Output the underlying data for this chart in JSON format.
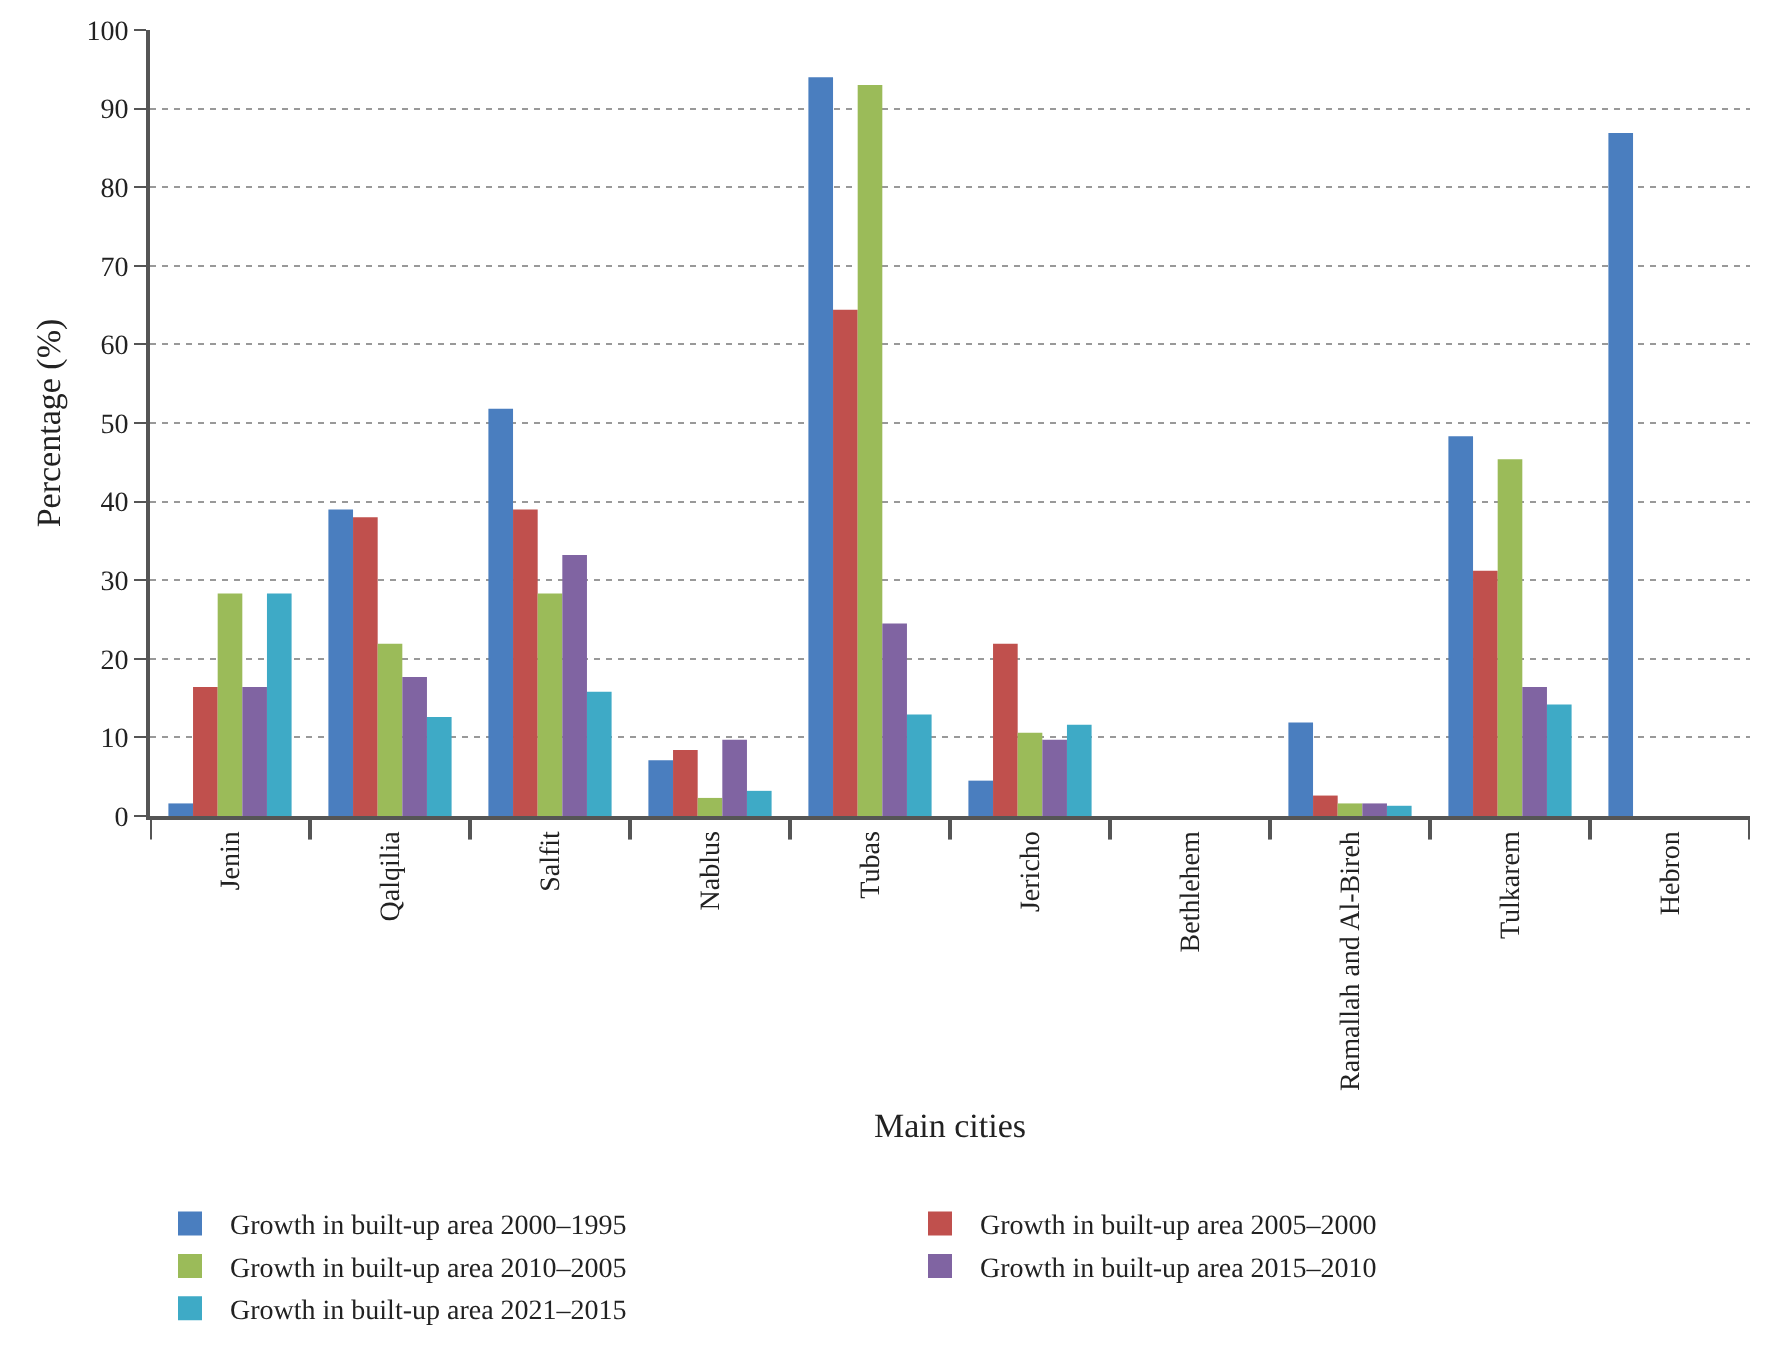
{
  "chart_data": {
    "type": "bar",
    "xlabel": "Main cities",
    "ylabel": "Percentage (%)",
    "categories": [
      "Jenin",
      "Qalqilia",
      "Salfit",
      "Nablus",
      "Tubas",
      "Jericho",
      "Bethlehem",
      "Ramallah and Al-Bireh",
      "Tulkarem",
      "Hebron"
    ],
    "series": [
      {
        "name": "Growth in built-up area 2000–1995",
        "color": "#4a7ebf",
        "values": [
          1.6,
          39.0,
          51.8,
          7.1,
          94.0,
          4.5,
          null,
          11.9,
          48.3,
          86.9
        ]
      },
      {
        "name": "Growth in built-up area 2005–2000",
        "color": "#c0504d",
        "values": [
          16.4,
          38.0,
          39.0,
          8.4,
          64.4,
          21.9,
          null,
          2.6,
          31.2,
          null
        ]
      },
      {
        "name": "Growth in built-up area 2010–2005",
        "color": "#9bbb59",
        "values": [
          28.3,
          21.9,
          28.3,
          2.3,
          93.0,
          10.6,
          null,
          1.6,
          45.4,
          null
        ]
      },
      {
        "name": "Growth in built-up area 2015–2010",
        "color": "#8064a2",
        "values": [
          16.4,
          17.7,
          33.2,
          9.7,
          24.5,
          9.7,
          null,
          1.6,
          16.4,
          null
        ]
      },
      {
        "name": "Growth in built-up area 2021–2015",
        "color": "#3eaac6",
        "values": [
          28.3,
          12.6,
          15.8,
          3.2,
          12.9,
          11.6,
          null,
          1.3,
          14.2,
          null
        ]
      }
    ],
    "ylim": [
      0,
      100
    ],
    "yticks": [
      0,
      10,
      20,
      30,
      40,
      50,
      60,
      70,
      80,
      90,
      100
    ],
    "grid": "y",
    "legend": "bottom"
  }
}
